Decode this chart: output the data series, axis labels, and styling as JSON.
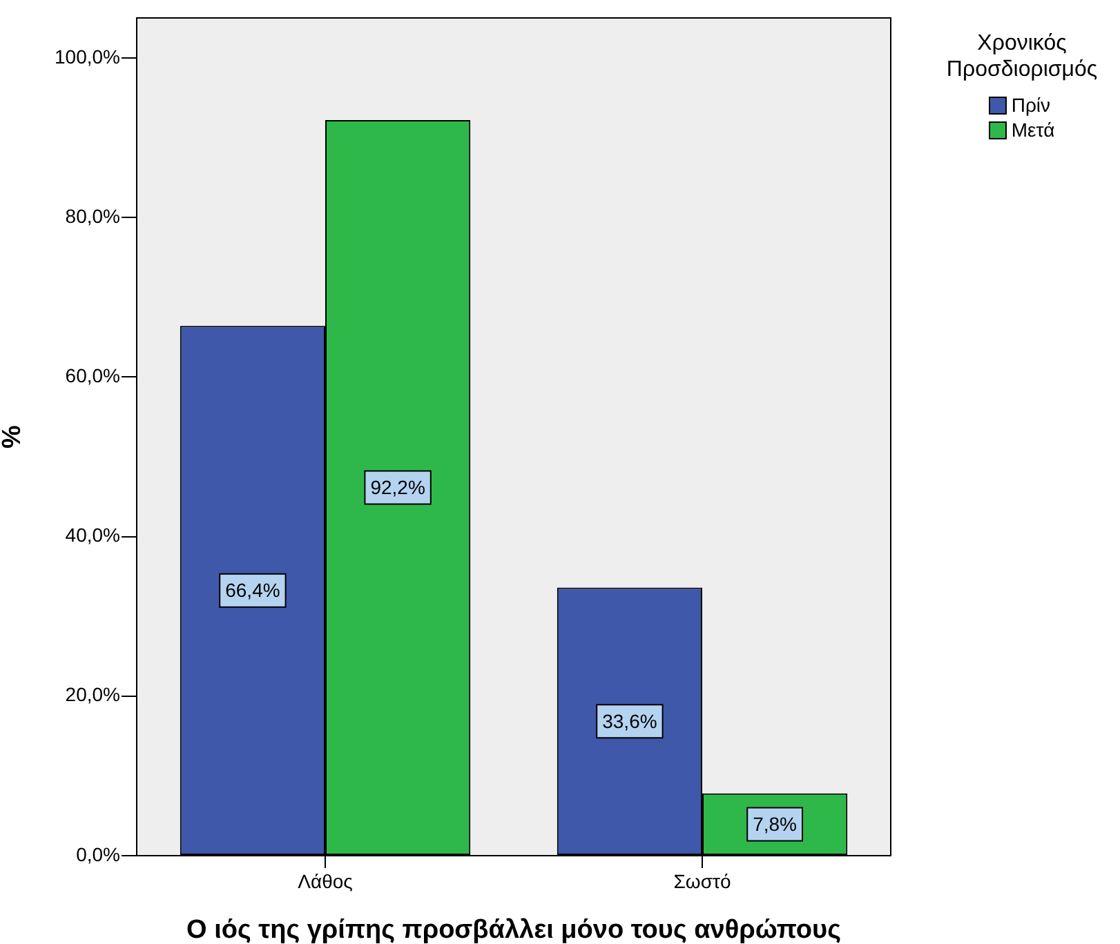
{
  "chart_data": {
    "type": "bar",
    "xlabel": "Ο ιός της γρίπης προσβάλλει μόνο τους ανθρώπους",
    "ylabel": "%",
    "legend_title": "Χρονικός Προσδιορισμός",
    "legend": "top right",
    "categories": [
      "Λάθος",
      "Σωστό"
    ],
    "series": [
      {
        "name": "Πρίν",
        "color": "#3f58aa",
        "values": [
          66.4,
          33.6
        ],
        "value_labels": [
          "66,4%",
          "33,6%"
        ]
      },
      {
        "name": "Μετά",
        "color": "#2fb84a",
        "values": [
          92.2,
          7.8
        ],
        "value_labels": [
          "92,2%",
          "7,8%"
        ]
      }
    ],
    "ylim": [
      0,
      105
    ],
    "yticks": [
      {
        "value": 0,
        "label": "0,0%"
      },
      {
        "value": 20,
        "label": "20,0%"
      },
      {
        "value": 40,
        "label": "40,0%"
      },
      {
        "value": 60,
        "label": "60,0%"
      },
      {
        "value": 80,
        "label": "80,0%"
      },
      {
        "value": 100,
        "label": "100,0%"
      }
    ]
  }
}
